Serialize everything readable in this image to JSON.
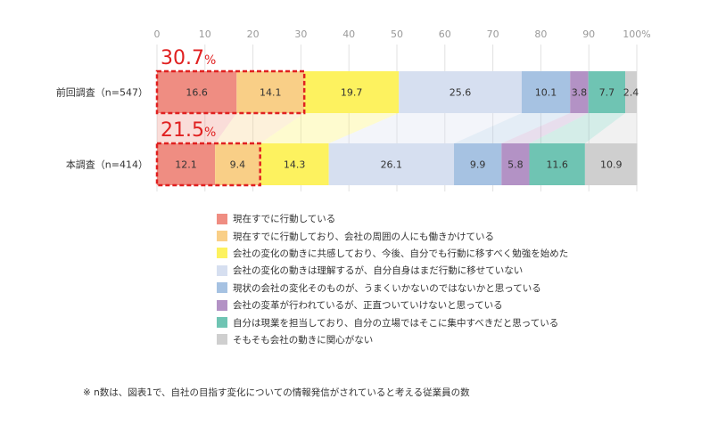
{
  "chart_data": {
    "type": "bar",
    "orientation": "horizontal",
    "stacked": true,
    "xlim": [
      0,
      100
    ],
    "x_ticks": [
      "0",
      "10",
      "20",
      "30",
      "40",
      "50",
      "60",
      "70",
      "80",
      "90",
      "100%"
    ],
    "categories": [
      "前回調査（n=547）",
      "本調査（n=414）"
    ],
    "series": [
      {
        "name": "現在すでに行動している",
        "color": "#ef8d82",
        "values": [
          16.6,
          12.1
        ]
      },
      {
        "name": "現在すでに行動しており、会社の周囲の人にも働きかけている",
        "color": "#f9cf87",
        "values": [
          14.1,
          9.4
        ]
      },
      {
        "name": "会社の変化の動きに共感しており、今後、自分でも行動に移すべく勉強を始めた",
        "color": "#fdf25f",
        "values": [
          19.7,
          14.3
        ]
      },
      {
        "name": "会社の変化の動きは理解するが、自分自身はまだ行動に移せていない",
        "color": "#d6dff0",
        "values": [
          25.6,
          26.1
        ]
      },
      {
        "name": "現状の会社の変化そのものが、うまくいかないのではないかと思っている",
        "color": "#a6c2e2",
        "values": [
          10.1,
          9.9
        ]
      },
      {
        "name": "会社の変革が行われているが、正直ついていけないと思っている",
        "color": "#b392c5",
        "values": [
          3.8,
          5.8
        ]
      },
      {
        "name": "自分は現業を担当しており、自分の立場ではそこに集中すべきだと思っている",
        "color": "#6fc4b3",
        "values": [
          7.7,
          11.6
        ]
      },
      {
        "name": "そもそも会社の動きに関心がない",
        "color": "#cfcfcf",
        "values": [
          2.4,
          10.9
        ]
      }
    ],
    "highlights": [
      {
        "number": "30.7",
        "unit": "%",
        "row": 0,
        "segments": 2
      },
      {
        "number": "21.5",
        "unit": "%",
        "row": 1,
        "segments": 2
      }
    ],
    "highlight_color": "#e02020"
  },
  "footnote": "※ n数は、図表1で、自社の目指す変化についての情報発信がされていると考える従業員の数"
}
